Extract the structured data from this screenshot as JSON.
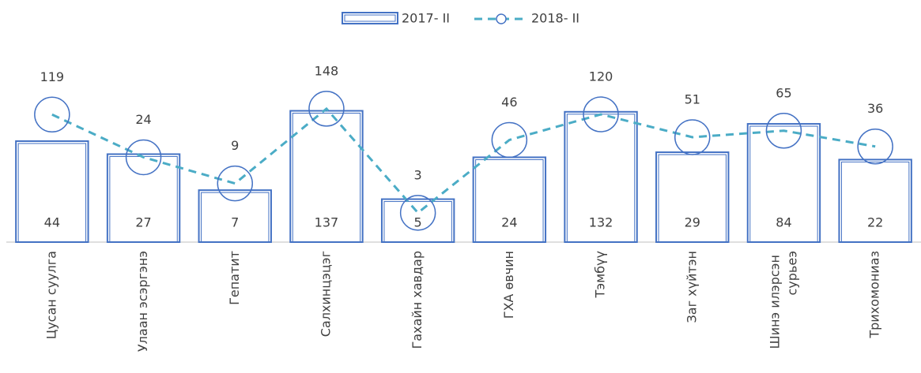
{
  "chart_data": {
    "type": "bar_line",
    "categories": [
      "Цусан суулга",
      "Улаан эсэргэнэ",
      "Гепатит",
      "Салхинцэцэг",
      "Гахайн хавдар",
      "ГХА өвчин",
      "Тэмбүү",
      "Заг хүйтэн",
      "Шинэ илэрсэн сурьеэ",
      "Трихомониаз"
    ],
    "series": [
      {
        "name": "2017- II",
        "type": "bar",
        "color": "#4472c4",
        "values": [
          44,
          27,
          7,
          137,
          5,
          24,
          132,
          29,
          84,
          22
        ]
      },
      {
        "name": "2018- II",
        "type": "line",
        "color": "#4bacc6",
        "marker_color": "#4472c4",
        "values": [
          119,
          24,
          9,
          148,
          3,
          46,
          120,
          51,
          65,
          36
        ]
      }
    ],
    "ylim": [
      1,
      300
    ],
    "log_scale": true,
    "legend": "top"
  }
}
